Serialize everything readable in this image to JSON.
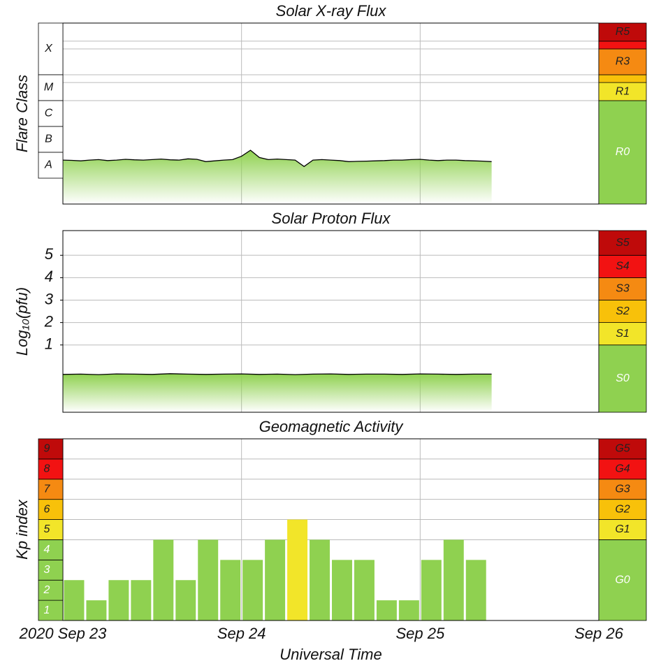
{
  "chart_data": [
    {
      "type": "area",
      "title": "Solar X-ray Flux",
      "ylabel": "Flare Class",
      "xlim": [
        0,
        3
      ],
      "ylim": [
        -9,
        -2
      ],
      "class_bands": [
        {
          "label": "X",
          "from": -4,
          "to": -2
        },
        {
          "label": "M",
          "from": -5,
          "to": -4
        },
        {
          "label": "C",
          "from": -6,
          "to": -5
        },
        {
          "label": "B",
          "from": -7,
          "to": -6
        },
        {
          "label": "A",
          "from": -8,
          "to": -7
        }
      ],
      "scale": [
        {
          "label": "R0",
          "from": -9,
          "to": -5,
          "color": "#8fd150"
        },
        {
          "label": "R1",
          "from": -5,
          "to": -4.3,
          "color": "#f2e529"
        },
        {
          "from": -4.3,
          "to": -4,
          "color": "#f8c10a"
        },
        {
          "label": "R3",
          "from": -4,
          "to": -3,
          "color": "#f58a12"
        },
        {
          "from": -3,
          "to": -2.7,
          "color": "#f21212"
        },
        {
          "label": "R5",
          "from": -2.7,
          "to": -2,
          "color": "#bf0a0a"
        }
      ],
      "color": "#8fd150",
      "x": [
        0,
        0.05,
        0.1,
        0.15,
        0.2,
        0.25,
        0.3,
        0.35,
        0.4,
        0.45,
        0.5,
        0.55,
        0.6,
        0.65,
        0.7,
        0.75,
        0.8,
        0.85,
        0.9,
        0.95,
        1.0,
        1.05,
        1.1,
        1.15,
        1.2,
        1.25,
        1.3,
        1.35,
        1.4,
        1.45,
        1.5,
        1.55,
        1.6,
        1.65,
        1.7,
        1.75,
        1.8,
        1.85,
        1.9,
        1.95,
        2.0,
        2.05,
        2.1,
        2.15,
        2.2,
        2.25,
        2.3,
        2.35,
        2.4
      ],
      "values": [
        -7.3,
        -7.31,
        -7.33,
        -7.3,
        -7.28,
        -7.32,
        -7.3,
        -7.27,
        -7.29,
        -7.3,
        -7.28,
        -7.26,
        -7.29,
        -7.3,
        -7.25,
        -7.27,
        -7.36,
        -7.33,
        -7.3,
        -7.28,
        -7.15,
        -6.92,
        -7.2,
        -7.28,
        -7.26,
        -7.28,
        -7.3,
        -7.55,
        -7.3,
        -7.28,
        -7.3,
        -7.32,
        -7.36,
        -7.35,
        -7.34,
        -7.33,
        -7.32,
        -7.3,
        -7.3,
        -7.28,
        -7.27,
        -7.3,
        -7.32,
        -7.3,
        -7.3,
        -7.32,
        -7.33,
        -7.34,
        -7.36
      ]
    },
    {
      "type": "area",
      "title": "Solar Proton Flux",
      "ylabel": "Log₁₀(pfu)",
      "xlim": [
        0,
        3
      ],
      "ylim": [
        -2,
        6.1
      ],
      "yticks": [
        1,
        2,
        3,
        4,
        5
      ],
      "scale": [
        {
          "label": "S0",
          "from": -2,
          "to": 1,
          "color": "#8fd150"
        },
        {
          "label": "S1",
          "from": 1,
          "to": 2,
          "color": "#f2e529"
        },
        {
          "label": "S2",
          "from": 2,
          "to": 3,
          "color": "#f8c10a"
        },
        {
          "label": "S3",
          "from": 3,
          "to": 4,
          "color": "#f58a12"
        },
        {
          "label": "S4",
          "from": 4,
          "to": 5,
          "color": "#f21212"
        },
        {
          "label": "S5",
          "from": 5,
          "to": 6.1,
          "color": "#bf0a0a"
        }
      ],
      "color": "#8fd150",
      "x": [
        0,
        0.1,
        0.2,
        0.3,
        0.4,
        0.5,
        0.6,
        0.7,
        0.8,
        0.9,
        1.0,
        1.1,
        1.2,
        1.3,
        1.4,
        1.5,
        1.6,
        1.7,
        1.8,
        1.9,
        2.0,
        2.1,
        2.2,
        2.3,
        2.4
      ],
      "values": [
        -0.31,
        -0.3,
        -0.32,
        -0.29,
        -0.3,
        -0.31,
        -0.28,
        -0.3,
        -0.31,
        -0.3,
        -0.29,
        -0.31,
        -0.3,
        -0.32,
        -0.3,
        -0.29,
        -0.31,
        -0.3,
        -0.3,
        -0.31,
        -0.29,
        -0.3,
        -0.31,
        -0.3,
        -0.3
      ]
    },
    {
      "type": "bar",
      "title": "Geomagnetic Activity",
      "ylabel": "Kp index",
      "xlabel": "Universal Time",
      "xlim": [
        0,
        3
      ],
      "ylim": [
        0,
        9
      ],
      "xticks": [
        {
          "value": 0,
          "label": "2020 Sep 23"
        },
        {
          "value": 1,
          "label": "Sep 24"
        },
        {
          "value": 2,
          "label": "Sep 25"
        },
        {
          "value": 3,
          "label": "Sep 26"
        }
      ],
      "yticks": [
        1,
        2,
        3,
        4,
        5,
        6,
        7,
        8,
        9
      ],
      "ytick_colors": [
        "#8fd150",
        "#8fd150",
        "#8fd150",
        "#8fd150",
        "#f2e529",
        "#f8c10a",
        "#f58a12",
        "#f21212",
        "#bf0a0a"
      ],
      "scale": [
        {
          "label": "G0",
          "from": 0,
          "to": 4,
          "color": "#8fd150"
        },
        {
          "label": "G1",
          "from": 4,
          "to": 5,
          "color": "#f2e529"
        },
        {
          "label": "G2",
          "from": 5,
          "to": 6,
          "color": "#f8c10a"
        },
        {
          "label": "G3",
          "from": 6,
          "to": 7,
          "color": "#f58a12"
        },
        {
          "label": "G4",
          "from": 7,
          "to": 8,
          "color": "#f21212"
        },
        {
          "label": "G5",
          "from": 8,
          "to": 9,
          "color": "#bf0a0a"
        }
      ],
      "x": [
        0.0625,
        0.1875,
        0.3125,
        0.4375,
        0.5625,
        0.6875,
        0.8125,
        0.9375,
        1.0625,
        1.1875,
        1.3125,
        1.4375,
        1.5625,
        1.6875,
        1.8125,
        1.9375,
        2.0625,
        2.1875,
        2.3125
      ],
      "values": [
        2,
        1,
        2,
        2,
        4,
        2,
        4,
        3,
        3,
        4,
        5,
        4,
        3,
        3,
        1,
        1,
        3,
        4,
        3
      ]
    }
  ]
}
